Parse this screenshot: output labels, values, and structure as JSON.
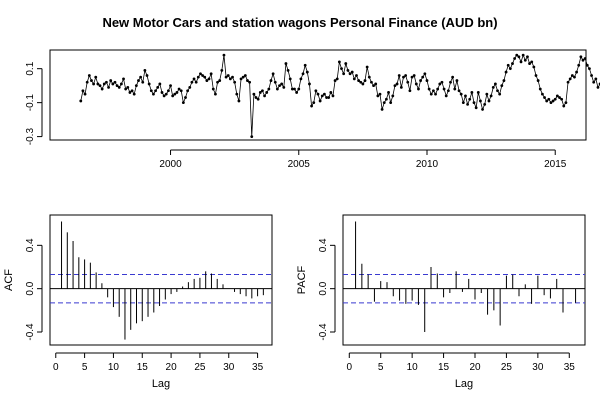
{
  "title": "New Motor Cars and station wagons Personal Finance (AUD bn)",
  "chart_data": [
    {
      "id": "ts",
      "type": "line",
      "xlim": [
        1995.3,
        2016.2
      ],
      "ylim": [
        -0.32,
        0.21
      ],
      "x_ticks": [
        2000,
        2005,
        2010,
        2015
      ],
      "x_tick_labels": [
        "2000",
        "2005",
        "2010",
        "2015"
      ],
      "y_ticks": [
        -0.3,
        -0.1,
        0.1
      ],
      "y_tick_labels": [
        "-0.3",
        "-0.1",
        "0.1"
      ],
      "x_start": 1996.5,
      "x_step": 0.0833333,
      "y": [
        -0.09,
        -0.03,
        -0.05,
        0.02,
        0.06,
        0.03,
        0.01,
        0.05,
        0.01,
        0.0,
        -0.02,
        0.01,
        0.02,
        -0.01,
        0.03,
        0.01,
        0.02,
        0.0,
        -0.01,
        0.01,
        0.04,
        -0.02,
        -0.01,
        -0.04,
        -0.03,
        -0.05,
        0.0,
        0.03,
        0.05,
        0.02,
        0.09,
        0.06,
        0.01,
        -0.03,
        -0.05,
        -0.03,
        -0.01,
        0.01,
        -0.04,
        -0.06,
        -0.05,
        -0.03,
        0.0,
        -0.06,
        -0.05,
        -0.04,
        -0.02,
        -0.03,
        -0.1,
        -0.07,
        -0.03,
        -0.01,
        0.02,
        0.04,
        0.02,
        0.05,
        0.07,
        0.06,
        0.05,
        0.03,
        0.04,
        0.07,
        -0.02,
        -0.05,
        0.02,
        0.03,
        0.09,
        0.18,
        0.05,
        0.06,
        0.04,
        0.05,
        0.02,
        -0.05,
        -0.09,
        0.04,
        0.05,
        0.06,
        0.03,
        0.02,
        -0.3,
        -0.05,
        -0.07,
        -0.08,
        -0.04,
        -0.03,
        -0.06,
        -0.04,
        -0.02,
        0.03,
        0.07,
        0.02,
        -0.02,
        0.0,
        0.01,
        -0.01,
        0.13,
        0.09,
        0.04,
        -0.02,
        -0.02,
        -0.04,
        -0.02,
        0.04,
        0.07,
        0.12,
        0.08,
        0.01,
        -0.12,
        -0.1,
        -0.03,
        -0.05,
        -0.09,
        -0.06,
        -0.05,
        -0.07,
        -0.07,
        -0.04,
        -0.06,
        0.03,
        0.04,
        0.14,
        0.1,
        0.07,
        0.13,
        0.09,
        0.07,
        0.08,
        0.04,
        0.06,
        0.03,
        0.02,
        0.01,
        0.03,
        0.11,
        0.05,
        0.02,
        0.0,
        0.01,
        -0.06,
        -0.05,
        -0.14,
        -0.1,
        -0.08,
        -0.04,
        -0.1,
        -0.06,
        0.0,
        0.01,
        0.06,
        -0.01,
        0.05,
        0.06,
        0.02,
        -0.03,
        0.05,
        0.06,
        0.01,
        -0.02,
        0.03,
        0.05,
        0.07,
        0.03,
        -0.02,
        -0.05,
        -0.03,
        -0.05,
        -0.02,
        0.01,
        0.02,
        -0.02,
        -0.06,
        -0.03,
        0.02,
        0.05,
        -0.02,
        0.03,
        -0.03,
        -0.05,
        -0.1,
        -0.06,
        -0.11,
        -0.08,
        -0.04,
        -0.1,
        -0.13,
        -0.04,
        -0.09,
        -0.14,
        -0.11,
        -0.05,
        -0.09,
        -0.06,
        -0.01,
        0.01,
        -0.03,
        -0.05,
        0.0,
        0.03,
        0.08,
        0.12,
        0.1,
        0.13,
        0.16,
        0.18,
        0.17,
        0.14,
        0.18,
        0.15,
        0.17,
        0.13,
        0.14,
        0.11,
        0.06,
        0.03,
        -0.02,
        -0.05,
        -0.07,
        -0.09,
        -0.08,
        -0.1,
        -0.09,
        -0.08,
        -0.06,
        -0.07,
        -0.08,
        -0.12,
        -0.1,
        0.02,
        0.04,
        0.06,
        0.05,
        0.08,
        0.12,
        0.17,
        0.15,
        0.16,
        0.12,
        0.1,
        0.06,
        0.02,
        0.04,
        -0.01,
        0.01,
        -0.03,
        -0.01,
        0.03,
        0.02,
        -0.05,
        -0.1,
        -0.17,
        -0.21,
        -0.16,
        -0.06,
        -0.1,
        -0.2,
        -0.21,
        -0.18,
        -0.14,
        -0.09,
        -0.05,
        -0.07,
        -0.11,
        -0.04,
        0.02,
        0.01,
        0.05,
        0.02,
        -0.09,
        -0.12,
        -0.1,
        -0.11,
        -0.06,
        -0.03,
        0.03,
        0.05,
        0.09,
        0.05,
        -0.05,
        -0.09,
        -0.02,
        -0.06,
        -0.1,
        -0.05
      ]
    },
    {
      "id": "acf",
      "type": "bar",
      "xlabel": "Lag",
      "ylabel": "ACF",
      "xlim": [
        -1,
        37.5
      ],
      "ylim": [
        -0.52,
        0.68
      ],
      "x_ticks": [
        0,
        5,
        10,
        15,
        20,
        25,
        30,
        35
      ],
      "x_tick_labels": [
        "0",
        "5",
        "10",
        "15",
        "20",
        "25",
        "30",
        "35"
      ],
      "y_ticks": [
        -0.4,
        0.0,
        0.4
      ],
      "y_tick_labels": [
        "-0.4",
        "0.0",
        "0.4"
      ],
      "conf_limit": 0.131,
      "x": [
        1,
        2,
        3,
        4,
        5,
        6,
        7,
        8,
        9,
        10,
        11,
        12,
        13,
        14,
        15,
        16,
        17,
        18,
        19,
        20,
        21,
        22,
        23,
        24,
        25,
        26,
        27,
        28,
        29,
        30,
        31,
        32,
        33,
        34,
        35,
        36
      ],
      "values": [
        0.62,
        0.52,
        0.44,
        0.29,
        0.27,
        0.24,
        0.15,
        0.05,
        -0.08,
        -0.17,
        -0.26,
        -0.47,
        -0.38,
        -0.32,
        -0.3,
        -0.26,
        -0.22,
        -0.16,
        -0.1,
        -0.05,
        -0.03,
        0.02,
        0.06,
        0.09,
        0.1,
        0.16,
        0.14,
        0.09,
        0.04,
        0.0,
        -0.03,
        -0.05,
        -0.07,
        -0.09,
        -0.07,
        -0.06
      ]
    },
    {
      "id": "pacf",
      "type": "bar",
      "xlabel": "Lag",
      "ylabel": "PACF",
      "xlim": [
        -1,
        37.5
      ],
      "ylim": [
        -0.52,
        0.68
      ],
      "x_ticks": [
        0,
        5,
        10,
        15,
        20,
        25,
        30,
        35
      ],
      "x_tick_labels": [
        "0",
        "5",
        "10",
        "15",
        "20",
        "25",
        "30",
        "35"
      ],
      "y_ticks": [
        -0.4,
        0.0,
        0.4
      ],
      "y_tick_labels": [
        "-0.4",
        "0.0",
        "0.4"
      ],
      "conf_limit": 0.131,
      "x": [
        1,
        2,
        3,
        4,
        5,
        6,
        7,
        8,
        9,
        10,
        11,
        12,
        13,
        14,
        15,
        16,
        17,
        18,
        19,
        20,
        21,
        22,
        23,
        24,
        25,
        26,
        27,
        28,
        29,
        30,
        31,
        32,
        33,
        34,
        35,
        36
      ],
      "values": [
        0.62,
        0.23,
        0.13,
        -0.12,
        0.07,
        0.06,
        -0.07,
        -0.11,
        -0.14,
        -0.11,
        -0.15,
        -0.4,
        0.2,
        0.14,
        -0.08,
        -0.04,
        0.16,
        -0.03,
        0.09,
        -0.1,
        -0.04,
        -0.24,
        -0.2,
        -0.34,
        0.12,
        0.13,
        -0.07,
        0.04,
        -0.14,
        0.12,
        -0.06,
        -0.09,
        0.09,
        -0.22,
        0.0,
        -0.13
      ]
    }
  ]
}
